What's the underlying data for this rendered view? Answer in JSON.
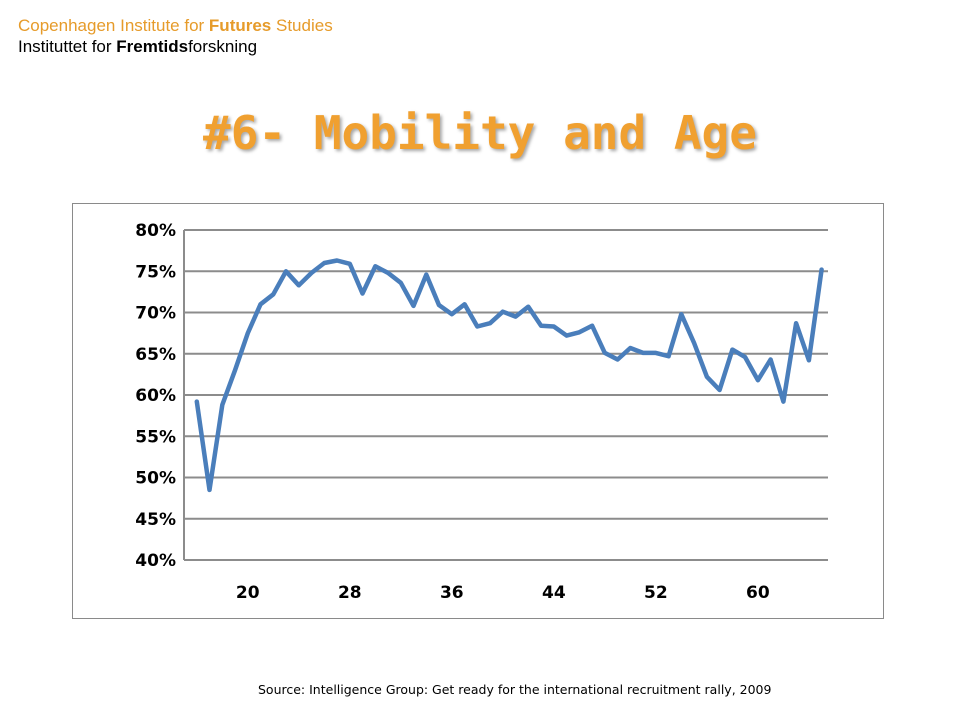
{
  "header": {
    "org_en_pre": "Copenhagen Institute for ",
    "org_en_bold": "Futures",
    "org_en_post": " Studies",
    "org_dk_pre": "Instituttet for ",
    "org_dk_bold": "Fremtids",
    "org_dk_post": "forskning"
  },
  "slide_title": "#6- Mobility and Age",
  "source": "Source: Intelligence Group: Get ready for the international recruitment rally, 2009",
  "colors": {
    "line": "#4a7ebb",
    "grid": "#8c8c8c",
    "title": "#f0a030",
    "org": "#e69b2a"
  },
  "chart_data": {
    "type": "line",
    "x": [
      16,
      17,
      18,
      19,
      20,
      21,
      22,
      23,
      24,
      25,
      26,
      27,
      28,
      29,
      30,
      31,
      32,
      33,
      34,
      35,
      36,
      37,
      38,
      39,
      40,
      41,
      42,
      43,
      44,
      45,
      46,
      47,
      48,
      49,
      50,
      51,
      52,
      53,
      54,
      55,
      56,
      57,
      58,
      59,
      60,
      61,
      62,
      63,
      64,
      65
    ],
    "series": [
      {
        "values": [
          59.2,
          48.5,
          58.8,
          63.0,
          67.5,
          71.0,
          72.2,
          75.0,
          73.3,
          74.8,
          76.0,
          76.3,
          75.9,
          72.3,
          75.6,
          74.8,
          73.6,
          70.8,
          74.6,
          70.9,
          69.8,
          71.0,
          68.3,
          68.7,
          70.1,
          69.5,
          70.7,
          68.4,
          68.3,
          67.2,
          67.6,
          68.4,
          65.1,
          64.3,
          65.7,
          65.1,
          65.1,
          64.7,
          69.8,
          66.3,
          62.2,
          60.6,
          65.5,
          64.6,
          61.8,
          64.3,
          59.2,
          68.7,
          64.2,
          75.2
        ]
      }
    ],
    "ylim": [
      40,
      80
    ],
    "y_ticks": [
      "40%",
      "45%",
      "50%",
      "55%",
      "60%",
      "65%",
      "70%",
      "75%",
      "80%"
    ],
    "y_tick_values": [
      40,
      45,
      50,
      55,
      60,
      65,
      70,
      75,
      80
    ],
    "x_ticks": [
      "20",
      "28",
      "36",
      "44",
      "52",
      "60"
    ],
    "x_tick_values": [
      20,
      28,
      36,
      44,
      52,
      60
    ],
    "x_range": [
      15,
      65.5
    ],
    "grid": true,
    "legend": "none"
  }
}
